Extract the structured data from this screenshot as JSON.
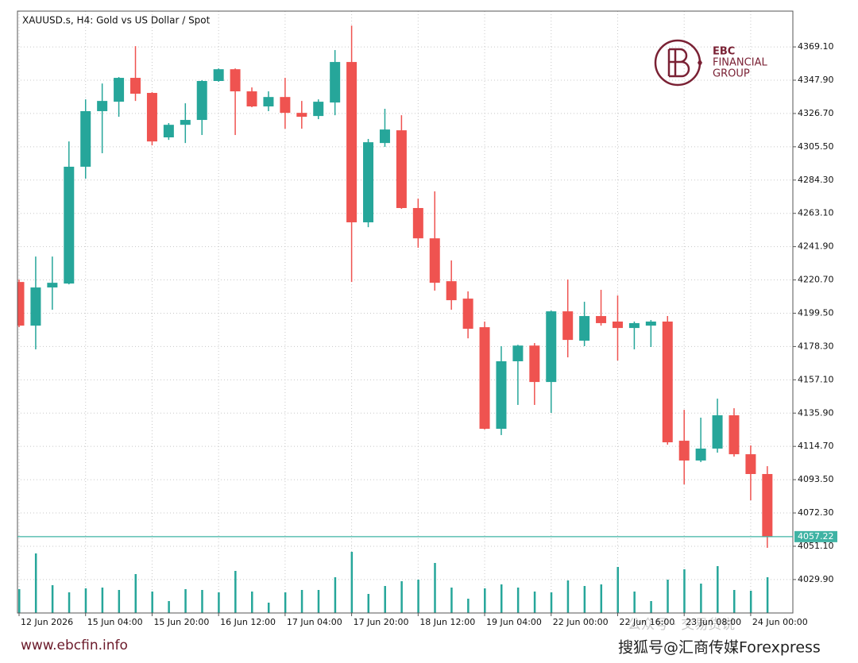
{
  "chart_data": {
    "type": "candlestick",
    "title": "XAUUSD.s, H4:  Gold vs US Dollar / Spot",
    "brand": {
      "short": "EBC",
      "line1": "FINANCIAL",
      "line2": "GROUP",
      "url": "www.ebcfin.info"
    },
    "watermarks": [
      "公众号 · 交易货说",
      "搜狐号@汇商传媒Forexpress"
    ],
    "up_color": "#26a69a",
    "down_color": "#ef5350",
    "price_line_color": "#3fb3a4",
    "grid": true,
    "categories": [
      "12 Jun 2026",
      null,
      null,
      null,
      "15 Jun 04:00",
      null,
      null,
      null,
      "15 Jun 20:00",
      null,
      null,
      null,
      "16 Jun 12:00",
      null,
      null,
      null,
      "17 Jun 04:00",
      null,
      null,
      null,
      "17 Jun 20:00",
      null,
      null,
      null,
      "18 Jun 12:00",
      null,
      null,
      null,
      "19 Jun 04:00",
      null,
      null,
      null,
      "22 Jun 00:00",
      null,
      null,
      null,
      "22 Jun 16:00",
      null,
      null,
      null,
      "23 Jun 08:00",
      null,
      null,
      null,
      "24 Jun 00:00",
      null
    ],
    "open": [
      4219.4,
      4191.6,
      4215.9,
      4218.4,
      4292.8,
      4328.2,
      4334.2,
      4349.4,
      4339.8,
      4311.5,
      4319.5,
      4322.6,
      4347.4,
      4354.9,
      4340.8,
      4331.2,
      4337.2,
      4327.1,
      4325.1,
      4333.7,
      4359.5,
      4257.4,
      4307.9,
      4316.0,
      4266.5,
      4247.2,
      4219.9,
      4208.8,
      4190.6,
      4125.9,
      4168.9,
      4178.9,
      4155.7,
      4200.7,
      4182.0,
      4197.7,
      4194.2,
      4190.1,
      4191.6,
      4194.2,
      4118.3,
      4105.7,
      4113.3,
      4134.5,
      4109.7,
      4097.1
    ],
    "high": [
      4221.0,
      4235.6,
      4235.6,
      4308.9,
      4335.7,
      4345.8,
      4349.9,
      4369.6,
      4340.3,
      4320.6,
      4333.2,
      4347.9,
      4355.4,
      4355.4,
      4343.3,
      4340.8,
      4349.4,
      4334.7,
      4335.7,
      4367.1,
      4382.7,
      4310.5,
      4329.7,
      4325.6,
      4272.5,
      4277.1,
      4233.1,
      4213.4,
      4194.2,
      4178.5,
      4179.4,
      4180.5,
      4201.2,
      4221.0,
      4206.8,
      4214.4,
      4210.8,
      4194.2,
      4195.2,
      4197.7,
      4138.0,
      4133.0,
      4145.1,
      4139.0,
      4115.3,
      4102.1
    ],
    "low": [
      4190.6,
      4176.5,
      4201.7,
      4217.9,
      4285.2,
      4301.4,
      4324.6,
      4334.7,
      4306.4,
      4309.9,
      4307.9,
      4313.0,
      4346.9,
      4313.0,
      4330.7,
      4328.2,
      4317.0,
      4317.0,
      4323.1,
      4325.6,
      4219.4,
      4254.3,
      4305.4,
      4266.0,
      4241.2,
      4213.9,
      4201.7,
      4183.5,
      4125.4,
      4121.9,
      4141.1,
      4141.1,
      4136.0,
      4171.4,
      4178.5,
      4191.6,
      4169.4,
      4176.5,
      4178.0,
      4115.8,
      4090.5,
      4104.7,
      4110.7,
      4108.2,
      4080.4,
      4050.1
    ],
    "close": [
      4191.6,
      4215.9,
      4218.9,
      4292.8,
      4328.2,
      4334.7,
      4349.4,
      4339.3,
      4308.9,
      4319.5,
      4322.6,
      4347.4,
      4354.9,
      4340.8,
      4331.2,
      4337.2,
      4327.1,
      4324.6,
      4334.2,
      4359.5,
      4257.4,
      4308.4,
      4316.5,
      4266.5,
      4247.2,
      4218.9,
      4207.8,
      4189.6,
      4125.9,
      4168.9,
      4178.9,
      4155.7,
      4200.7,
      4182.5,
      4197.7,
      4193.2,
      4190.1,
      4193.2,
      4194.2,
      4117.3,
      4105.7,
      4113.3,
      4134.5,
      4109.7,
      4097.1,
      4057.22
    ],
    "volume": [
      30,
      75,
      35,
      26,
      31,
      32,
      29,
      49,
      27,
      15,
      30,
      29,
      26,
      53,
      27,
      13,
      26,
      29,
      29,
      45,
      77,
      24,
      34,
      40,
      42,
      63,
      32,
      18,
      31,
      36,
      32,
      27,
      26,
      41,
      34,
      36,
      58,
      27,
      15,
      42,
      55,
      37,
      59,
      29,
      28,
      45
    ],
    "ylim": [
      4008.6,
      4391.9
    ],
    "yticks": [
      {
        "value": 4369.1,
        "label": "4369.10"
      },
      {
        "value": 4347.9,
        "label": "4347.90"
      },
      {
        "value": 4326.7,
        "label": "4326.70"
      },
      {
        "value": 4305.5,
        "label": "4305.50"
      },
      {
        "value": 4284.3,
        "label": "4284.30"
      },
      {
        "value": 4263.1,
        "label": "4263.10"
      },
      {
        "value": 4241.9,
        "label": "4241.90"
      },
      {
        "value": 4220.7,
        "label": "4220.70"
      },
      {
        "value": 4199.5,
        "label": "4199.50"
      },
      {
        "value": 4178.3,
        "label": "4178.30"
      },
      {
        "value": 4157.1,
        "label": "4157.10"
      },
      {
        "value": 4135.9,
        "label": "4135.90"
      },
      {
        "value": 4114.7,
        "label": "4114.70"
      },
      {
        "value": 4093.5,
        "label": "4093.50"
      },
      {
        "value": 4072.3,
        "label": "4072.30"
      },
      {
        "value": 4051.1,
        "label": "4051.10"
      },
      {
        "value": 4029.9,
        "label": "4029.90"
      }
    ]
  }
}
